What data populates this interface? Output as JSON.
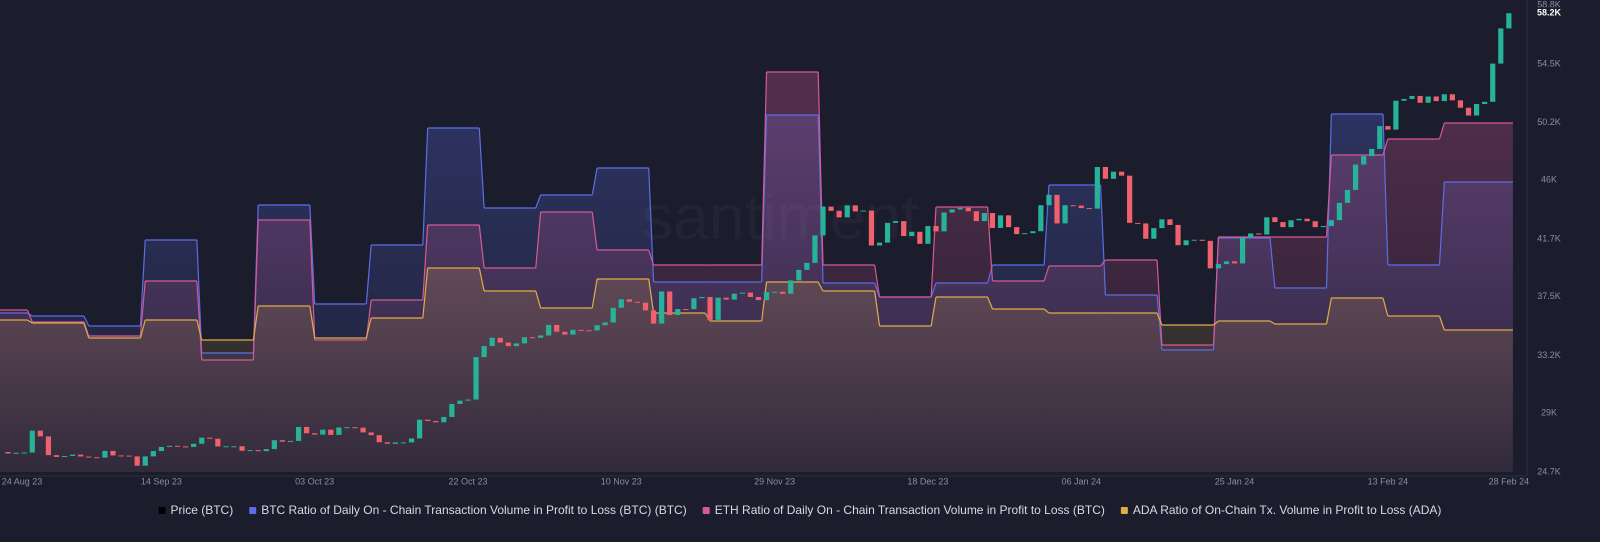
{
  "chart_data": {
    "type": "candlestick",
    "watermark": "santiment",
    "last_label": "58.2K",
    "xlim": [
      "2023-08-25",
      "2024-03-01"
    ],
    "xticks": [
      {
        "value": "2023-08-24",
        "label": "24 Aug 23"
      },
      {
        "value": "2023-09-14",
        "label": "14 Sep 23"
      },
      {
        "value": "2023-10-03",
        "label": "03 Oct 23"
      },
      {
        "value": "2023-10-22",
        "label": "22 Oct 23"
      },
      {
        "value": "2023-11-10",
        "label": "10 Nov 23"
      },
      {
        "value": "2023-11-29",
        "label": "29 Nov 23"
      },
      {
        "value": "2023-12-18",
        "label": "18 Dec 23"
      },
      {
        "value": "2024-01-06",
        "label": "06 Jan 24"
      },
      {
        "value": "2024-01-25",
        "label": "25 Jan 24"
      },
      {
        "value": "2024-02-13",
        "label": "13 Feb 24"
      },
      {
        "value": "2024-02-28",
        "label": "28 Feb 24"
      }
    ],
    "ylim": [
      24700,
      58800
    ],
    "yticks": [
      {
        "value": 24700,
        "label": "24.7K"
      },
      {
        "value": 29000,
        "label": "29K"
      },
      {
        "value": 33200,
        "label": "33.2K"
      },
      {
        "value": 37500,
        "label": "37.5K"
      },
      {
        "value": 41700,
        "label": "41.7K"
      },
      {
        "value": 46000,
        "label": "46K"
      },
      {
        "value": 50200,
        "label": "50.2K"
      },
      {
        "value": 54500,
        "label": "54.5K"
      },
      {
        "value": 58800,
        "label": "58.8K"
      }
    ],
    "y2lim": [
      0,
      4.67
    ],
    "grid": false,
    "legend": "bottom",
    "series": [
      {
        "name": "Price (BTC)",
        "type": "candlestick",
        "color": "#000000",
        "up_color": "#26b39a",
        "down_color": "#f0616d",
        "x": [
          "2023-08-26",
          "2023-08-27",
          "2023-08-28",
          "2023-08-29",
          "2023-08-30",
          "2023-08-31",
          "2023-09-01",
          "2023-09-02",
          "2023-09-03",
          "2023-09-04",
          "2023-09-05",
          "2023-09-06",
          "2023-09-07",
          "2023-09-08",
          "2023-09-09",
          "2023-09-10",
          "2023-09-11",
          "2023-09-12",
          "2023-09-13",
          "2023-09-14",
          "2023-09-15",
          "2023-09-16",
          "2023-09-17",
          "2023-09-18",
          "2023-09-19",
          "2023-09-20",
          "2023-09-21",
          "2023-09-22",
          "2023-09-23",
          "2023-09-24",
          "2023-09-25",
          "2023-09-26",
          "2023-09-27",
          "2023-09-28",
          "2023-09-29",
          "2023-09-30",
          "2023-10-01",
          "2023-10-02",
          "2023-10-03",
          "2023-10-04",
          "2023-10-05",
          "2023-10-06",
          "2023-10-07",
          "2023-10-08",
          "2023-10-09",
          "2023-10-10",
          "2023-10-11",
          "2023-10-12",
          "2023-10-13",
          "2023-10-14",
          "2023-10-15",
          "2023-10-16",
          "2023-10-17",
          "2023-10-18",
          "2023-10-19",
          "2023-10-20",
          "2023-10-21",
          "2023-10-22",
          "2023-10-23",
          "2023-10-24",
          "2023-10-25",
          "2023-10-26",
          "2023-10-27",
          "2023-10-28",
          "2023-10-29",
          "2023-10-30",
          "2023-10-31",
          "2023-11-01",
          "2023-11-02",
          "2023-11-03",
          "2023-11-04",
          "2023-11-05",
          "2023-11-06",
          "2023-11-07",
          "2023-11-08",
          "2023-11-09",
          "2023-11-10",
          "2023-11-11",
          "2023-11-12",
          "2023-11-13",
          "2023-11-14",
          "2023-11-15",
          "2023-11-16",
          "2023-11-17",
          "2023-11-18",
          "2023-11-19",
          "2023-11-20",
          "2023-11-21",
          "2023-11-22",
          "2023-11-23",
          "2023-11-24",
          "2023-11-25",
          "2023-11-26",
          "2023-11-27",
          "2023-11-28",
          "2023-11-29",
          "2023-11-30",
          "2023-12-01",
          "2023-12-02",
          "2023-12-03",
          "2023-12-04",
          "2023-12-05",
          "2023-12-06",
          "2023-12-07",
          "2023-12-08",
          "2023-12-09",
          "2023-12-10",
          "2023-12-11",
          "2023-12-12",
          "2023-12-13",
          "2023-12-14",
          "2023-12-15",
          "2023-12-16",
          "2023-12-17",
          "2023-12-18",
          "2023-12-19",
          "2023-12-20",
          "2023-12-21",
          "2023-12-22",
          "2023-12-23",
          "2023-12-24",
          "2023-12-25",
          "2023-12-26",
          "2023-12-27",
          "2023-12-28",
          "2023-12-29",
          "2023-12-30",
          "2023-12-31",
          "2024-01-01",
          "2024-01-02",
          "2024-01-03",
          "2024-01-04",
          "2024-01-05",
          "2024-01-06",
          "2024-01-07",
          "2024-01-08",
          "2024-01-09",
          "2024-01-10",
          "2024-01-11",
          "2024-01-12",
          "2024-01-13",
          "2024-01-14",
          "2024-01-15",
          "2024-01-16",
          "2024-01-17",
          "2024-01-18",
          "2024-01-19",
          "2024-01-20",
          "2024-01-21",
          "2024-01-22",
          "2024-01-23",
          "2024-01-24",
          "2024-01-25",
          "2024-01-26",
          "2024-01-27",
          "2024-01-28",
          "2024-01-29",
          "2024-01-30",
          "2024-01-31",
          "2024-02-01",
          "2024-02-02",
          "2024-02-03",
          "2024-02-04",
          "2024-02-05",
          "2024-02-06",
          "2024-02-07",
          "2024-02-08",
          "2024-02-09",
          "2024-02-10",
          "2024-02-11",
          "2024-02-12",
          "2024-02-13",
          "2024-02-14",
          "2024-02-15",
          "2024-02-16",
          "2024-02-17",
          "2024-02-18",
          "2024-02-19",
          "2024-02-20",
          "2024-02-21",
          "2024-02-22",
          "2024-02-23",
          "2024-02-24",
          "2024-02-25",
          "2024-02-26",
          "2024-02-27",
          "2024-02-28"
        ],
        "open": [
          26160,
          26050,
          26100,
          26120,
          27720,
          27300,
          25930,
          25800,
          25870,
          25970,
          25830,
          25780,
          25750,
          26240,
          25910,
          25900,
          25840,
          25160,
          25840,
          26230,
          26530,
          26610,
          26570,
          26530,
          26760,
          27210,
          27130,
          26570,
          26580,
          26580,
          26250,
          26300,
          26220,
          26370,
          27020,
          26910,
          26970,
          27990,
          27530,
          27430,
          27790,
          27410,
          27950,
          27970,
          27940,
          27590,
          27390,
          26870,
          26760,
          26860,
          26860,
          27150,
          28520,
          28420,
          28330,
          28720,
          29670,
          29910,
          29990,
          33090,
          33900,
          34500,
          34150,
          33890,
          34090,
          34540,
          34500,
          34670,
          35440,
          34940,
          34730,
          35080,
          35050,
          35040,
          35420,
          35620,
          36690,
          37310,
          37130,
          37060,
          36500,
          35540,
          37880,
          36160,
          36600,
          36590,
          37390,
          37480,
          35810,
          37430,
          37290,
          37720,
          37800,
          37480,
          37250,
          37830,
          37860,
          37710,
          38690,
          39460,
          39970,
          41980,
          44080,
          43770,
          43290,
          44170,
          43730,
          43790,
          41240,
          41450,
          42890,
          43020,
          41930,
          42240,
          41360,
          42660,
          42270,
          43650,
          43870,
          43990,
          43740,
          43020,
          43610,
          42520,
          43440,
          42580,
          42070,
          42140,
          42280,
          44180,
          44940,
          42850,
          44180,
          44160,
          43970,
          43930,
          46970,
          46110,
          46630,
          46340,
          42890,
          42850,
          41730,
          42510,
          43150,
          42740,
          41260,
          41620,
          41660,
          41580,
          39570,
          39880,
          40080,
          39930,
          41820,
          42120,
          42040,
          43300,
          42950,
          42580,
          43080,
          43190,
          43010,
          42580,
          42660,
          43090,
          44350,
          45300,
          47150,
          47770,
          48290,
          49960,
          49700,
          51810,
          51940,
          52160,
          51660,
          52120,
          51780,
          52280,
          51840,
          51300,
          50730,
          51570,
          51730,
          54520,
          57090
        ],
        "close": [
          26050,
          26100,
          26120,
          27720,
          27300,
          25930,
          25800,
          25870,
          25970,
          25830,
          25780,
          25750,
          26240,
          25910,
          25900,
          25840,
          25160,
          25840,
          26230,
          26530,
          26610,
          26570,
          26530,
          26760,
          27210,
          27130,
          26570,
          26580,
          26580,
          26250,
          26300,
          26220,
          26370,
          27020,
          26910,
          26970,
          27990,
          27530,
          27430,
          27790,
          27410,
          27950,
          27970,
          27940,
          27590,
          27390,
          26870,
          26760,
          26860,
          26860,
          27150,
          28520,
          28420,
          28330,
          28720,
          29670,
          29910,
          29990,
          33090,
          33900,
          34500,
          34150,
          33890,
          34090,
          34540,
          34500,
          34670,
          35440,
          34940,
          34730,
          35080,
          35050,
          35040,
          35420,
          35620,
          36690,
          37310,
          37130,
          37060,
          36500,
          35540,
          37880,
          36160,
          36600,
          36590,
          37390,
          37480,
          35810,
          37430,
          37290,
          37720,
          37800,
          37480,
          37250,
          37830,
          37860,
          37710,
          38690,
          39460,
          39970,
          41980,
          44080,
          43770,
          43290,
          44170,
          43730,
          43790,
          41240,
          41450,
          42890,
          43020,
          41930,
          42240,
          41360,
          42660,
          42270,
          43650,
          43870,
          43990,
          43740,
          43020,
          43610,
          42520,
          43440,
          42580,
          42070,
          42140,
          42280,
          44180,
          44940,
          42850,
          44180,
          44160,
          43970,
          43930,
          46970,
          46110,
          46630,
          46340,
          42890,
          42850,
          41730,
          42510,
          43150,
          42740,
          41260,
          41620,
          41660,
          41580,
          39570,
          39880,
          40080,
          39930,
          41820,
          42120,
          42040,
          43300,
          42950,
          42580,
          43080,
          43190,
          43010,
          42580,
          42660,
          43090,
          44350,
          45300,
          47150,
          47770,
          48290,
          49960,
          49700,
          51810,
          51940,
          52160,
          51660,
          52120,
          51780,
          52280,
          51840,
          51300,
          50730,
          51570,
          51730,
          54520,
          57090,
          58200
        ]
      },
      {
        "name": "BTC Ratio of Daily On - Chain Transaction Volume in Profit to Loss (BTC) (BTC)",
        "type": "step-area",
        "axis": "y2",
        "color": "#5b6ee6",
        "x": [
          "2023-08-25",
          "2023-08-29",
          "2023-09-05",
          "2023-09-12",
          "2023-09-19",
          "2023-09-26",
          "2023-10-03",
          "2023-10-10",
          "2023-10-17",
          "2023-10-24",
          "2023-10-31",
          "2023-11-07",
          "2023-11-14",
          "2023-11-21",
          "2023-11-28",
          "2023-12-05",
          "2023-12-12",
          "2023-12-19",
          "2023-12-26",
          "2024-01-02",
          "2024-01-09",
          "2024-01-16",
          "2024-01-23",
          "2024-01-30",
          "2024-02-06",
          "2024-02-13",
          "2024-02-20"
        ],
        "values": [
          1.59,
          1.56,
          1.46,
          2.32,
          1.19,
          2.67,
          1.68,
          2.27,
          3.44,
          2.64,
          2.77,
          3.04,
          1.9,
          1.9,
          3.57,
          1.89,
          1.75,
          1.89,
          2.07,
          2.87,
          1.77,
          1.22,
          2.34,
          1.84,
          3.58,
          2.07,
          2.9
        ]
      },
      {
        "name": "ETH Ratio of Daily On - Chain Transaction Volume in Profit to Loss (BTC)",
        "type": "step-area",
        "axis": "y2",
        "color": "#d65a93",
        "x": [
          "2023-08-25",
          "2023-08-29",
          "2023-09-05",
          "2023-09-12",
          "2023-09-19",
          "2023-09-26",
          "2023-10-03",
          "2023-10-10",
          "2023-10-17",
          "2023-10-24",
          "2023-10-31",
          "2023-11-07",
          "2023-11-14",
          "2023-11-21",
          "2023-11-28",
          "2023-12-05",
          "2023-12-12",
          "2023-12-19",
          "2023-12-26",
          "2024-01-02",
          "2024-01-09",
          "2024-01-16",
          "2024-01-23",
          "2024-01-30",
          "2024-02-06",
          "2024-02-13",
          "2024-02-20"
        ],
        "values": [
          1.62,
          1.5,
          1.36,
          1.91,
          1.12,
          2.52,
          1.32,
          1.72,
          2.47,
          2.04,
          2.6,
          2.22,
          2.07,
          2.07,
          4.0,
          2.07,
          1.75,
          2.65,
          1.91,
          2.06,
          2.12,
          1.27,
          2.35,
          2.35,
          3.17,
          3.33,
          3.49
        ]
      },
      {
        "name": "ADA Ratio of On-Chain Tx. Volume in Profit to Loss (ADA)",
        "type": "step-area",
        "axis": "y2",
        "color": "#e0ad45",
        "x": [
          "2023-08-25",
          "2023-08-29",
          "2023-09-05",
          "2023-09-12",
          "2023-09-19",
          "2023-09-26",
          "2023-10-03",
          "2023-10-10",
          "2023-10-17",
          "2023-10-24",
          "2023-10-31",
          "2023-11-07",
          "2023-11-14",
          "2023-11-21",
          "2023-11-28",
          "2023-12-05",
          "2023-12-12",
          "2023-12-19",
          "2023-12-26",
          "2024-01-02",
          "2024-01-09",
          "2024-01-16",
          "2024-01-23",
          "2024-01-30",
          "2024-02-06",
          "2024-02-13",
          "2024-02-20"
        ],
        "values": [
          1.52,
          1.49,
          1.34,
          1.52,
          1.32,
          1.66,
          1.34,
          1.54,
          2.04,
          1.81,
          1.64,
          1.93,
          1.59,
          1.51,
          1.9,
          1.81,
          1.46,
          1.75,
          1.63,
          1.59,
          1.59,
          1.47,
          1.51,
          1.48,
          1.74,
          1.56,
          1.42
        ]
      }
    ]
  }
}
